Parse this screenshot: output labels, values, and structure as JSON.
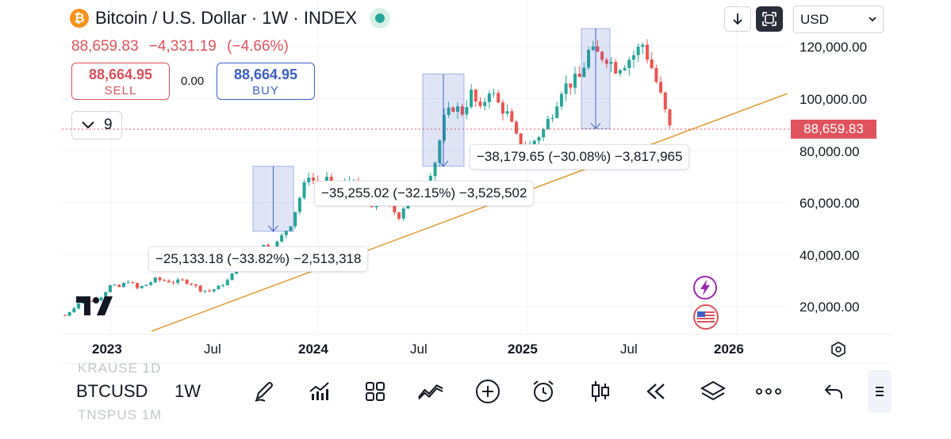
{
  "header": {
    "title": "Bitcoin / U.S. Dollar · 1W · INDEX",
    "last": "88,659.83",
    "change": "−4,331.19",
    "change_pct": "(−4.66%)",
    "status_color": "#26a69a"
  },
  "trade": {
    "sell_price": "88,664.95",
    "sell_label": "SELL",
    "spread": "0.00",
    "buy_price": "88,664.95",
    "buy_label": "BUY"
  },
  "indicators": {
    "count": "9",
    "icon": "chevron-down-icon"
  },
  "toolbar_top": {
    "currency": "USD",
    "icons": [
      "arrow-down-icon",
      "fullscreen-icon",
      "chevron-down-icon"
    ]
  },
  "price_axis": {
    "labels": [
      "120,000.00",
      "100,000.00",
      "80,000.00",
      "60,000.00",
      "40,000.00",
      "20,000.00"
    ],
    "current": "88,659.83"
  },
  "time_axis": {
    "labels": [
      "2023",
      "Jul",
      "2024",
      "Jul",
      "2025",
      "Jul",
      "2026"
    ]
  },
  "annotations": [
    {
      "text": "−25,133.18 (−33.82%) −2,513,318"
    },
    {
      "text": "−35,255.02 (−32.15%) −3,525,502"
    },
    {
      "text": "−38,179.65 (−30.08%) −3,817,965"
    }
  ],
  "chart_data": {
    "type": "candlestick",
    "symbol": "BTCUSD",
    "interval": "1W",
    "ylim": [
      5000,
      130000
    ],
    "colors": {
      "up": "#26a69a",
      "down": "#ef5350",
      "trendline": "#e0a03b",
      "measure": "#3d5fc4"
    },
    "trendline": [
      {
        "date": "2023-04",
        "price": 10000
      },
      {
        "date": "2025-12",
        "price": 103000
      }
    ],
    "measures": [
      {
        "from": 74000,
        "to": 49000
      },
      {
        "from": 109500,
        "to": 74000
      },
      {
        "from": 127000,
        "to": 88500
      }
    ],
    "weekly_path": [
      [
        0,
        16500
      ],
      [
        4,
        23000
      ],
      [
        6,
        22000
      ],
      [
        8,
        24000
      ],
      [
        10,
        28000
      ],
      [
        12,
        27500
      ],
      [
        14,
        30000
      ],
      [
        16,
        27000
      ],
      [
        18,
        28500
      ],
      [
        20,
        30500
      ],
      [
        22,
        30000
      ],
      [
        24,
        29500
      ],
      [
        26,
        30000
      ],
      [
        28,
        29000
      ],
      [
        30,
        26500
      ],
      [
        32,
        26000
      ],
      [
        34,
        27500
      ],
      [
        36,
        30000
      ],
      [
        38,
        34500
      ],
      [
        40,
        37500
      ],
      [
        42,
        42000
      ],
      [
        44,
        43500
      ],
      [
        46,
        42000
      ],
      [
        48,
        47000
      ],
      [
        50,
        52000
      ],
      [
        52,
        62000
      ],
      [
        54,
        71000
      ],
      [
        56,
        66000
      ],
      [
        58,
        69000
      ],
      [
        60,
        64000
      ],
      [
        62,
        67000
      ],
      [
        64,
        70000
      ],
      [
        66,
        62000
      ],
      [
        68,
        57000
      ],
      [
        70,
        64000
      ],
      [
        72,
        58000
      ],
      [
        74,
        55000
      ],
      [
        76,
        62000
      ],
      [
        78,
        66000
      ],
      [
        80,
        68000
      ],
      [
        82,
        76000
      ],
      [
        84,
        92000
      ],
      [
        86,
        97000
      ],
      [
        88,
        95000
      ],
      [
        90,
        102000
      ],
      [
        92,
        95000
      ],
      [
        94,
        104000
      ],
      [
        96,
        98000
      ],
      [
        98,
        94000
      ],
      [
        100,
        85000
      ],
      [
        102,
        80000
      ],
      [
        104,
        84000
      ],
      [
        106,
        88000
      ],
      [
        108,
        95000
      ],
      [
        110,
        104000
      ],
      [
        112,
        106000
      ],
      [
        114,
        108000
      ],
      [
        116,
        118000
      ],
      [
        118,
        117000
      ],
      [
        120,
        116000
      ],
      [
        122,
        112000
      ],
      [
        124,
        114000
      ],
      [
        126,
        117000
      ],
      [
        128,
        121000
      ],
      [
        130,
        112000
      ],
      [
        132,
        101000
      ],
      [
        134,
        88659
      ]
    ]
  },
  "bottom_bar": {
    "symbol": "BTCUSD",
    "interval": "1W",
    "ghost_above": "KRAUSE  1D",
    "ghost_below": "TNSPUS  1M",
    "tools": [
      "pencil-icon",
      "indicators-icon",
      "layout-grid-icon",
      "compare-icon",
      "add-icon",
      "alarm-clock-icon",
      "candle-icon",
      "replay-icon",
      "layers-icon",
      "more-icon",
      "undo-icon",
      "drag-handle-icon"
    ]
  }
}
